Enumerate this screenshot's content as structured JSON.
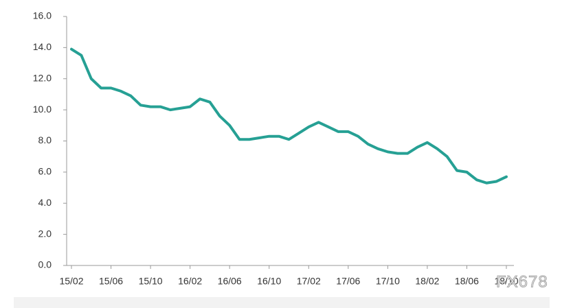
{
  "chart_data": {
    "type": "line",
    "categories": [
      "15/02",
      null,
      null,
      null,
      "15/06",
      null,
      null,
      null,
      "15/10",
      null,
      null,
      null,
      "16/02",
      null,
      null,
      null,
      "16/06",
      null,
      null,
      null,
      "16/10",
      null,
      null,
      null,
      "17/02",
      null,
      null,
      null,
      "17/06",
      null,
      null,
      null,
      "17/10",
      null,
      null,
      null,
      "18/02",
      null,
      null,
      null,
      "18/06",
      null,
      null,
      null,
      "18/10"
    ],
    "series": [
      {
        "color": "#26a094",
        "values": [
          13.9,
          13.5,
          12.0,
          11.4,
          11.4,
          11.2,
          10.9,
          10.3,
          10.2,
          10.2,
          10.0,
          10.1,
          10.2,
          10.7,
          10.5,
          9.6,
          9.0,
          8.1,
          8.1,
          8.2,
          8.3,
          8.3,
          8.1,
          8.5,
          8.9,
          9.2,
          8.9,
          8.6,
          8.6,
          8.3,
          7.8,
          7.5,
          7.3,
          7.2,
          7.2,
          7.6,
          7.9,
          7.5,
          7.0,
          6.1,
          6.0,
          5.5,
          5.3,
          5.4,
          5.7
        ]
      }
    ],
    "ylim": [
      0,
      16
    ],
    "yticks": [
      {
        "value": 0,
        "label": "0.0"
      },
      {
        "value": 2,
        "label": "2.0"
      },
      {
        "value": 4,
        "label": "4.0"
      },
      {
        "value": 6,
        "label": "6.0"
      },
      {
        "value": 8,
        "label": "8.0"
      },
      {
        "value": 10,
        "label": "10.0"
      },
      {
        "value": 12,
        "label": "12.0"
      },
      {
        "value": 14,
        "label": "14.0"
      },
      {
        "value": 16,
        "label": "16.0"
      }
    ],
    "watermark": "FX678"
  }
}
